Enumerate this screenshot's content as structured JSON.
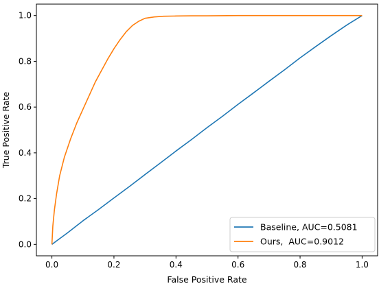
{
  "chart_data": {
    "type": "line",
    "title": "",
    "xlabel": "False Positive Rate",
    "ylabel": "True Positive Rate",
    "xlim": [
      -0.05,
      1.05
    ],
    "ylim": [
      -0.05,
      1.05
    ],
    "xticks": [
      0.0,
      0.2,
      0.4,
      0.6,
      0.8,
      1.0
    ],
    "yticks": [
      0.0,
      0.2,
      0.4,
      0.6,
      0.8,
      1.0
    ],
    "xtick_labels": [
      "0.0",
      "0.2",
      "0.4",
      "0.6",
      "0.8",
      "1.0"
    ],
    "ytick_labels": [
      "0.0",
      "0.2",
      "0.4",
      "0.6",
      "0.8",
      "1.0"
    ],
    "grid": false,
    "legend_position": "lower-right",
    "series": [
      {
        "name": "Baseline, AUC=0.5081",
        "color": "#1f77b4",
        "x": [
          0.0,
          0.02,
          0.05,
          0.1,
          0.15,
          0.2,
          0.25,
          0.3,
          0.35,
          0.4,
          0.45,
          0.5,
          0.55,
          0.6,
          0.65,
          0.7,
          0.75,
          0.8,
          0.85,
          0.9,
          0.95,
          1.0
        ],
        "y": [
          0.0,
          0.02,
          0.05,
          0.103,
          0.152,
          0.203,
          0.253,
          0.305,
          0.356,
          0.408,
          0.458,
          0.51,
          0.56,
          0.612,
          0.662,
          0.713,
          0.763,
          0.815,
          0.864,
          0.912,
          0.958,
          1.0
        ]
      },
      {
        "name": "Ours,  AUC=0.9012",
        "color": "#ff7f0e",
        "x": [
          0.0,
          0.003,
          0.008,
          0.015,
          0.025,
          0.04,
          0.06,
          0.08,
          0.1,
          0.12,
          0.14,
          0.16,
          0.18,
          0.2,
          0.22,
          0.24,
          0.26,
          0.28,
          0.3,
          0.33,
          0.36,
          0.4,
          0.45,
          0.5,
          0.6,
          0.7,
          0.8,
          0.9,
          1.0
        ],
        "y": [
          0.0,
          0.08,
          0.15,
          0.22,
          0.3,
          0.38,
          0.46,
          0.53,
          0.59,
          0.65,
          0.71,
          0.76,
          0.81,
          0.855,
          0.895,
          0.93,
          0.957,
          0.975,
          0.988,
          0.994,
          0.997,
          0.998,
          0.999,
          0.999,
          1.0,
          1.0,
          1.0,
          1.0,
          1.0
        ]
      }
    ]
  }
}
